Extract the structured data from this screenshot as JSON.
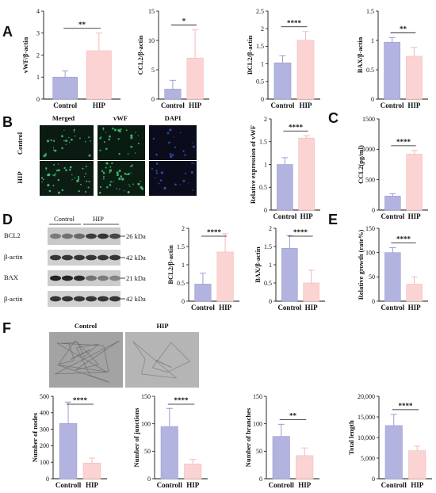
{
  "panel_labels": [
    "A",
    "B",
    "C",
    "D",
    "E",
    "F"
  ],
  "colors": {
    "control": "#b3b3e0",
    "hip": "#fcd3d3",
    "control_edge": "#9c9cd0",
    "hip_edge": "#f4b8b8"
  },
  "images": {
    "B": {
      "columns": [
        "Merged",
        "vWF",
        "DAPI"
      ],
      "rows": [
        "Control",
        "HIP"
      ]
    },
    "D": {
      "groups": [
        "Control",
        "HIP"
      ],
      "rows": [
        "BCL2",
        "β-actin",
        "BAX",
        "β-actin"
      ],
      "sizes": [
        "26 kDa",
        "42 kDa",
        "21 kDa",
        "42 kDa"
      ]
    },
    "F": {
      "columns": [
        "Control",
        "HIP"
      ]
    }
  },
  "chart_data": [
    {
      "id": "A1",
      "type": "bar",
      "categories": [
        "Control",
        "HIP"
      ],
      "values": [
        1.0,
        2.2
      ],
      "errors": [
        0.28,
        0.8
      ],
      "ylabel": "vWF/β-actin",
      "ylim": [
        0,
        4
      ],
      "yticks": [
        0,
        1,
        2,
        3,
        4
      ],
      "significance": "**"
    },
    {
      "id": "A2",
      "type": "bar",
      "categories": [
        "Control",
        "HIP"
      ],
      "values": [
        1.7,
        7.0
      ],
      "errors": [
        1.5,
        4.8
      ],
      "ylabel": "CCL2/β-actin",
      "ylim": [
        0,
        15
      ],
      "yticks": [
        0,
        5,
        10,
        15
      ],
      "significance": "*"
    },
    {
      "id": "A3",
      "type": "bar",
      "categories": [
        "Control",
        "HIP"
      ],
      "values": [
        1.03,
        1.67
      ],
      "errors": [
        0.2,
        0.25
      ],
      "ylabel": "BCL2/β-actin",
      "ylim": [
        0,
        2.5
      ],
      "yticks": [
        0.0,
        0.5,
        1.0,
        1.5,
        2.0,
        2.5
      ],
      "significance": "****"
    },
    {
      "id": "A4",
      "type": "bar",
      "categories": [
        "Control",
        "HIP"
      ],
      "values": [
        0.97,
        0.73
      ],
      "errors": [
        0.08,
        0.15
      ],
      "ylabel": "BAX/β-actin",
      "ylim": [
        0,
        1.5
      ],
      "yticks": [
        0.0,
        0.5,
        1.0,
        1.5
      ],
      "significance": "**"
    },
    {
      "id": "B",
      "type": "bar",
      "categories": [
        "Control",
        "HIP"
      ],
      "values": [
        1.0,
        1.58
      ],
      "errors": [
        0.15,
        0.05
      ],
      "ylabel": "Relative expression of vWF",
      "ylim": [
        0,
        2.0
      ],
      "yticks": [
        0.0,
        0.5,
        1.0,
        1.5,
        2.0
      ],
      "significance": "****"
    },
    {
      "id": "C",
      "type": "bar",
      "categories": [
        "Control",
        "HIP"
      ],
      "values": [
        230,
        920
      ],
      "errors": [
        40,
        60
      ],
      "ylabel": "CCL2(pg/ml)",
      "ylim": [
        0,
        1500
      ],
      "yticks": [
        0,
        500,
        1000,
        1500
      ],
      "significance": "****"
    },
    {
      "id": "D1",
      "type": "bar",
      "categories": [
        "Control",
        "HIP"
      ],
      "values": [
        0.47,
        1.35
      ],
      "errors": [
        0.3,
        0.5
      ],
      "ylabel": "BCL2/β-actin",
      "ylim": [
        0,
        2.0
      ],
      "yticks": [
        0.0,
        0.5,
        1.0,
        1.5,
        2.0
      ],
      "significance": "****"
    },
    {
      "id": "D2",
      "type": "bar",
      "categories": [
        "Control",
        "HIP"
      ],
      "values": [
        1.45,
        0.5
      ],
      "errors": [
        0.35,
        0.35
      ],
      "ylabel": "BAX/β-actin",
      "ylim": [
        0,
        2.0
      ],
      "yticks": [
        0.0,
        0.5,
        1.0,
        1.5,
        2.0
      ],
      "significance": "****"
    },
    {
      "id": "E",
      "type": "bar",
      "categories": [
        "Control",
        "HIP"
      ],
      "values": [
        100,
        35
      ],
      "errors": [
        10,
        15
      ],
      "ylabel": "Relative growth (rate%)",
      "ylim": [
        0,
        150
      ],
      "yticks": [
        0,
        50,
        100,
        150
      ],
      "significance": "****"
    },
    {
      "id": "F1",
      "type": "bar",
      "categories": [
        "Controll",
        "HIP"
      ],
      "values": [
        335,
        95
      ],
      "errors": [
        130,
        30
      ],
      "ylabel": "Number of nodes",
      "ylim": [
        0,
        500
      ],
      "yticks": [
        0,
        100,
        200,
        300,
        400,
        500
      ],
      "significance": "****"
    },
    {
      "id": "F2",
      "type": "bar",
      "categories": [
        "Controll",
        "HIP"
      ],
      "values": [
        95,
        27
      ],
      "errors": [
        33,
        8
      ],
      "ylabel": "Number of junctions",
      "ylim": [
        0,
        150
      ],
      "yticks": [
        0,
        50,
        100,
        150
      ],
      "significance": "****"
    },
    {
      "id": "F3",
      "type": "bar",
      "categories": [
        "Controll",
        "HIP"
      ],
      "values": [
        77,
        42
      ],
      "errors": [
        22,
        14
      ],
      "ylabel": "Number of branches",
      "ylim": [
        0,
        150
      ],
      "yticks": [
        0,
        50,
        100,
        150
      ],
      "significance": "**"
    },
    {
      "id": "F4",
      "type": "bar",
      "categories": [
        "Controll",
        "HIP"
      ],
      "values": [
        12900,
        6800
      ],
      "errors": [
        2700,
        1100
      ],
      "ylabel": "Total length",
      "ylim": [
        0,
        20000
      ],
      "yticks": [
        0,
        5000,
        10000,
        15000,
        20000
      ],
      "tick_labels": [
        "0",
        "5,000",
        "10,000",
        "15,000",
        "20,000"
      ],
      "significance": "****"
    }
  ]
}
